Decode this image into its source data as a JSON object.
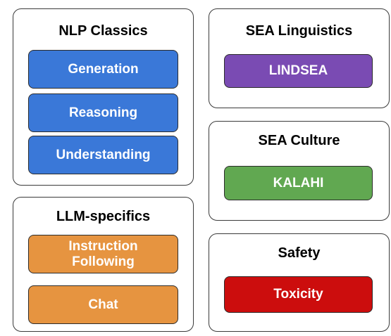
{
  "groups": {
    "nlp_classics": {
      "title": "NLP Classics",
      "items": [
        "Generation",
        "Reasoning",
        "Understanding"
      ]
    },
    "llm_specifics": {
      "title": "LLM-specifics",
      "items": [
        "Instruction Following",
        "Chat"
      ]
    },
    "sea_linguistics": {
      "title": "SEA Linguistics",
      "items": [
        "LINDSEA"
      ]
    },
    "sea_culture": {
      "title": "SEA Culture",
      "items": [
        "KALAHI"
      ]
    },
    "safety": {
      "title": "Safety",
      "items": [
        "Toxicity"
      ]
    }
  },
  "colors": {
    "nlp": "#3a78d8",
    "llm": "#e69440",
    "linguistics": "#7a4bb3",
    "culture": "#61a851",
    "safety": "#cc0d0d"
  }
}
